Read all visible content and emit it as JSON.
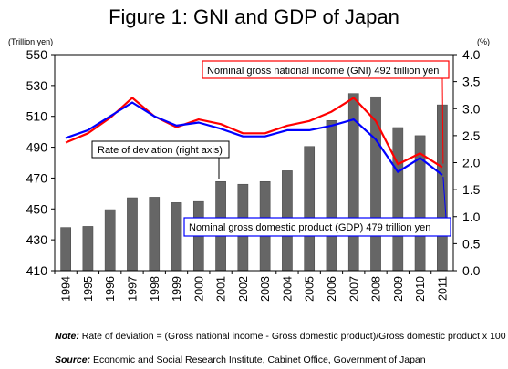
{
  "title": "Figure 1: GNI and GDP of Japan",
  "chart_data": {
    "type": "bar+line",
    "title": "Figure 1: GNI and GDP of Japan",
    "ylabel_left": "(Trillion yen)",
    "ylabel_right": "(%)",
    "ylim_left": [
      410,
      550
    ],
    "ylim_right": [
      0.0,
      4.0
    ],
    "yticks_left": [
      "410",
      "430",
      "450",
      "470",
      "490",
      "510",
      "530",
      "550"
    ],
    "yticks_right": [
      "0.0",
      "0.5",
      "1.0",
      "1.5",
      "2.0",
      "2.5",
      "3.0",
      "3.5",
      "4.0"
    ],
    "categories": [
      "1994",
      "1995",
      "1996",
      "1997",
      "1998",
      "1999",
      "2000",
      "2001",
      "2002",
      "2003",
      "2004",
      "2005",
      "2006",
      "2007",
      "2008",
      "2009",
      "2010",
      "2011"
    ],
    "series": [
      {
        "name": "Rate of deviation (right axis)",
        "type": "bar",
        "axis": "right",
        "color": "#666666",
        "values": [
          0.8,
          0.82,
          1.13,
          1.35,
          1.36,
          1.26,
          1.28,
          1.65,
          1.6,
          1.65,
          1.85,
          2.3,
          2.78,
          3.28,
          3.22,
          2.65,
          2.5,
          3.07
        ]
      },
      {
        "name": "Nominal gross national income (GNI) 492 trillion yen",
        "type": "line",
        "axis": "left",
        "color": "#ff0000",
        "values": [
          493,
          499,
          509,
          522,
          510,
          503,
          508,
          505,
          499,
          499,
          504,
          507,
          513,
          522,
          507,
          479,
          486,
          477
        ]
      },
      {
        "name": "Nominal gross domestic product (GDP) 479 trillion yen",
        "type": "line",
        "axis": "left",
        "color": "#0000ff",
        "values": [
          496,
          501,
          510,
          519,
          510,
          504,
          506,
          502,
          497,
          497,
          501,
          501,
          504,
          508,
          495,
          474,
          483,
          472
        ]
      }
    ],
    "annotations": {
      "gni": "Nominal gross national income (GNI) 492 trillion yen",
      "gdp": "Nominal gross domestic product (GDP) 479 trillion yen",
      "deviation": "Rate of deviation (right axis)"
    },
    "grid": false
  },
  "note": {
    "label": "Note:",
    "text": " Rate of deviation = (Gross national income - Gross domestic product)/Gross domestic product x 100"
  },
  "source": {
    "label": "Source:",
    "text": " Economic and Social Research Institute, Cabinet Office, Government of Japan"
  }
}
